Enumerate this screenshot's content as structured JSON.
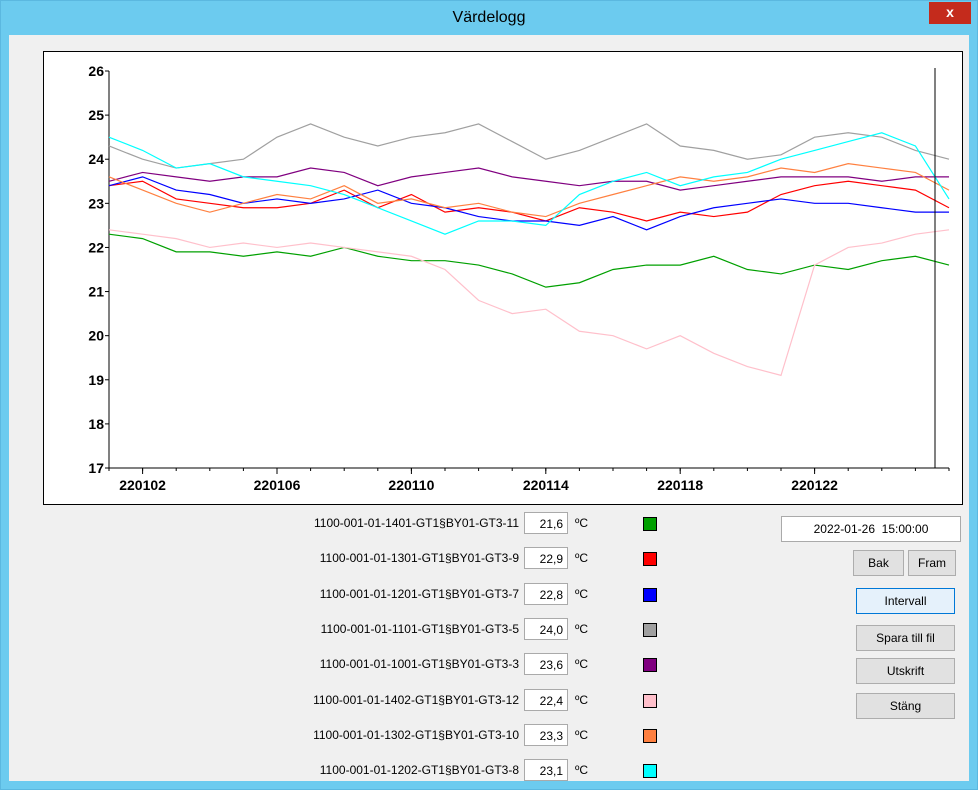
{
  "window": {
    "title": "Värdelogg",
    "close": "x"
  },
  "chart_data": {
    "type": "line",
    "x": [
      "220101",
      "220102",
      "220103",
      "220104",
      "220105",
      "220106",
      "220107",
      "220108",
      "220109",
      "220110",
      "220111",
      "220112",
      "220113",
      "220114",
      "220115",
      "220116",
      "220117",
      "220118",
      "220119",
      "220120",
      "220121",
      "220122",
      "220123",
      "220124",
      "220125",
      "220126"
    ],
    "xticks": [
      "220102",
      "220106",
      "220110",
      "220114",
      "220118",
      "220122"
    ],
    "ylim": [
      17,
      26
    ],
    "yticks": [
      17,
      18,
      19,
      20,
      21,
      22,
      23,
      24,
      25,
      26
    ],
    "grid": false,
    "series": [
      {
        "name": "1100-001-01-1401-GT1§BY01-GT3-11",
        "color": "#00a000",
        "values": [
          22.3,
          22.2,
          21.9,
          21.9,
          21.8,
          21.9,
          21.8,
          22.0,
          21.8,
          21.7,
          21.7,
          21.6,
          21.4,
          21.1,
          21.2,
          21.5,
          21.6,
          21.6,
          21.8,
          21.5,
          21.4,
          21.6,
          21.5,
          21.7,
          21.8,
          21.6
        ]
      },
      {
        "name": "1100-001-01-1301-GT1§BY01-GT3-9",
        "color": "#ff0000",
        "values": [
          23.4,
          23.5,
          23.1,
          23.0,
          22.9,
          22.9,
          23.0,
          23.3,
          22.9,
          23.2,
          22.8,
          22.9,
          22.8,
          22.6,
          22.9,
          22.8,
          22.6,
          22.8,
          22.7,
          22.8,
          23.2,
          23.4,
          23.5,
          23.4,
          23.3,
          22.9
        ]
      },
      {
        "name": "1100-001-01-1201-GT1§BY01-GT3-7",
        "color": "#0000ff",
        "values": [
          23.4,
          23.6,
          23.3,
          23.2,
          23.0,
          23.1,
          23.0,
          23.1,
          23.3,
          23.0,
          22.9,
          22.7,
          22.6,
          22.6,
          22.5,
          22.7,
          22.4,
          22.7,
          22.9,
          23.0,
          23.1,
          23.0,
          23.0,
          22.9,
          22.8,
          22.8
        ]
      },
      {
        "name": "1100-001-01-1101-GT1§BY01-GT3-5",
        "color": "#a0a0a0",
        "values": [
          24.3,
          24.0,
          23.8,
          23.9,
          24.0,
          24.5,
          24.8,
          24.5,
          24.3,
          24.5,
          24.6,
          24.8,
          24.4,
          24.0,
          24.2,
          24.5,
          24.8,
          24.3,
          24.2,
          24.0,
          24.1,
          24.5,
          24.6,
          24.5,
          24.2,
          24.0
        ]
      },
      {
        "name": "1100-001-01-1001-GT1§BY01-GT3-3",
        "color": "#800080",
        "values": [
          23.5,
          23.7,
          23.6,
          23.5,
          23.6,
          23.6,
          23.8,
          23.7,
          23.4,
          23.6,
          23.7,
          23.8,
          23.6,
          23.5,
          23.4,
          23.5,
          23.5,
          23.3,
          23.4,
          23.5,
          23.6,
          23.6,
          23.6,
          23.5,
          23.6,
          23.6
        ]
      },
      {
        "name": "1100-001-01-1402-GT1§BY01-GT3-12",
        "color": "#ffc0cb",
        "values": [
          22.4,
          22.3,
          22.2,
          22.0,
          22.1,
          22.0,
          22.1,
          22.0,
          21.9,
          21.8,
          21.5,
          20.8,
          20.5,
          20.6,
          20.1,
          20.0,
          19.7,
          20.0,
          19.6,
          19.3,
          19.1,
          21.6,
          22.0,
          22.1,
          22.3,
          22.4
        ]
      },
      {
        "name": "1100-001-01-1302-GT1§BY01-GT3-10",
        "color": "#ff8040",
        "values": [
          23.6,
          23.3,
          23.0,
          22.8,
          23.0,
          23.2,
          23.1,
          23.4,
          23.0,
          23.1,
          22.9,
          23.0,
          22.8,
          22.7,
          23.0,
          23.2,
          23.4,
          23.6,
          23.5,
          23.6,
          23.8,
          23.7,
          23.9,
          23.8,
          23.7,
          23.3
        ]
      },
      {
        "name": "1100-001-01-1202-GT1§BY01-GT3-8",
        "color": "#00ffff",
        "values": [
          24.5,
          24.2,
          23.8,
          23.9,
          23.6,
          23.5,
          23.4,
          23.2,
          22.9,
          22.6,
          22.3,
          22.6,
          22.6,
          22.5,
          23.2,
          23.5,
          23.7,
          23.4,
          23.6,
          23.7,
          24.0,
          24.2,
          24.4,
          24.6,
          24.3,
          23.1
        ]
      }
    ]
  },
  "readings": [
    {
      "value": "21,6",
      "unit": "ºC"
    },
    {
      "value": "22,9",
      "unit": "ºC"
    },
    {
      "value": "22,8",
      "unit": "ºC"
    },
    {
      "value": "24,0",
      "unit": "ºC"
    },
    {
      "value": "23,6",
      "unit": "ºC"
    },
    {
      "value": "22,4",
      "unit": "ºC"
    },
    {
      "value": "23,3",
      "unit": "ºC"
    },
    {
      "value": "23,1",
      "unit": "ºC"
    }
  ],
  "timestamp": "2022-01-26  15:00:00",
  "buttons": {
    "back": "Bak",
    "forward": "Fram",
    "interval": "Intervall",
    "save": "Spara till fil",
    "print": "Utskrift",
    "close": "Stäng"
  }
}
